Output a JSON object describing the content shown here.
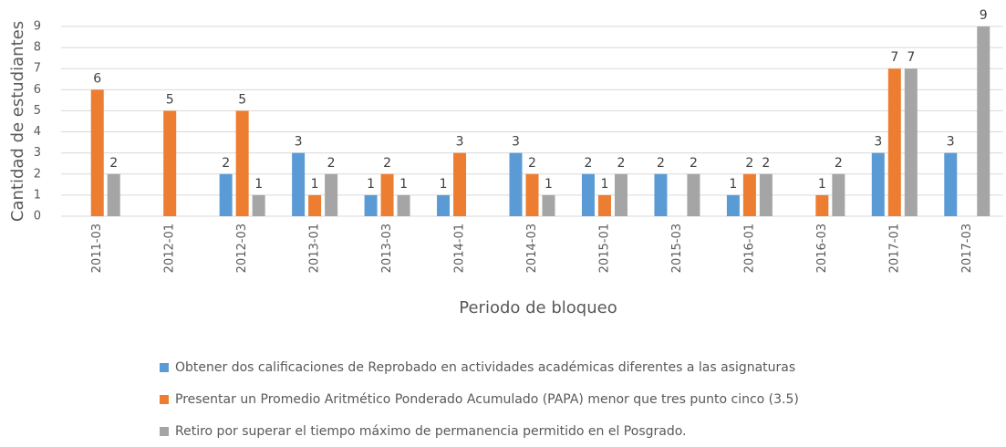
{
  "chart_data": {
    "type": "bar",
    "y_label": "Cantidad de estudiantes",
    "x_label": "Periodo de bloqueo",
    "categories": [
      "2011-03",
      "2012-01",
      "2012-03",
      "2013-01",
      "2013-03",
      "2014-01",
      "2014-03",
      "2015-01",
      "2015-03",
      "2016-01",
      "2016-03",
      "2017-01",
      "2017-03"
    ],
    "series": [
      {
        "name": "Obtener dos calificaciones de Reprobado en actividades académicas diferentes a las asignaturas",
        "color": "#5b9bd5",
        "values": [
          null,
          null,
          2,
          3,
          1,
          1,
          3,
          2,
          2,
          1,
          null,
          3,
          3
        ]
      },
      {
        "name": "Presentar un Promedio Aritmético Ponderado Acumulado (PAPA) menor que tres punto cinco (3.5)",
        "color": "#ed7d31",
        "values": [
          6,
          5,
          5,
          1,
          2,
          3,
          2,
          1,
          null,
          2,
          1,
          7,
          null
        ]
      },
      {
        "name": "Retiro por superar el tiempo máximo de permanencia permitido en el Posgrado.",
        "color": "#a5a5a5",
        "values": [
          2,
          null,
          1,
          2,
          1,
          null,
          1,
          2,
          2,
          2,
          2,
          7,
          9
        ]
      }
    ],
    "ylim": [
      0,
      9
    ],
    "yticks": [
      0,
      1,
      2,
      3,
      4,
      5,
      6,
      7,
      8,
      9
    ],
    "grid": true
  }
}
